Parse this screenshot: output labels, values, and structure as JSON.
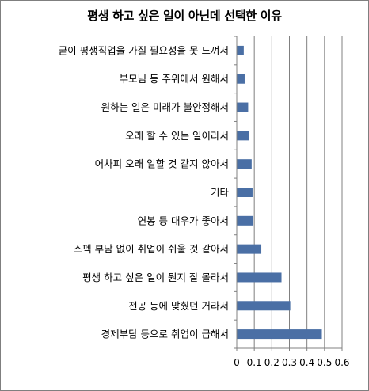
{
  "chart_data": {
    "type": "bar",
    "orientation": "horizontal",
    "title": "평생 하고 싶은 일이 아닌데 선택한 이유",
    "categories": [
      "굳이 평생직업을 가질 필요성을 못 느껴서",
      "부모님 등 주위에서 원해서",
      "원하는 일은 미래가 불안정해서",
      "오래 할 수 있는 일이라서",
      "어차피 오래 일할 것 같지 않아서",
      "기타",
      "연봉 등 대우가 좋아서",
      "스펙 부담 없이 취업이 쉬울 것 같아서",
      "평생 하고 싶은 일이 뭔지 잘 몰라서",
      "전공 등에 맞췄던 거라서",
      "경제부담 등으로 취업이 급해서"
    ],
    "values": [
      0.04,
      0.045,
      0.065,
      0.07,
      0.085,
      0.09,
      0.095,
      0.14,
      0.255,
      0.305,
      0.485
    ],
    "xlim": [
      0,
      0.6
    ],
    "xticks": [
      "0",
      "0.1",
      "0.2",
      "0.3",
      "0.4",
      "0.5",
      "0.6"
    ],
    "grid": "vertical",
    "bar_color": "#4a6fa5",
    "xlabel": "",
    "ylabel": ""
  }
}
